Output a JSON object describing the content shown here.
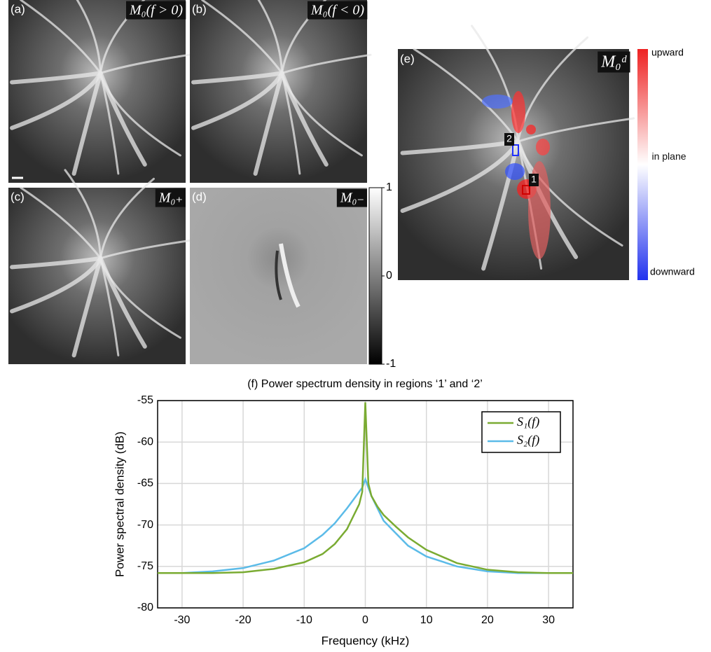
{
  "panels": [
    {
      "tag": "(a)",
      "label": "M₀(f > 0)"
    },
    {
      "tag": "(b)",
      "label": "M₀(f < 0)"
    },
    {
      "tag": "(c)",
      "label": "M₀₊"
    },
    {
      "tag": "(d)",
      "label": "M₀₋"
    },
    {
      "tag": "(e)",
      "label": "M₀ᵈ"
    }
  ],
  "colorbar_d": {
    "ticks": [
      1,
      0,
      -1
    ],
    "lim": [
      -1,
      1
    ]
  },
  "colorbar_e": {
    "top": "upward",
    "middle": "in plane",
    "bottom": "downward"
  },
  "regions": [
    "1",
    "2"
  ],
  "chart_data": {
    "type": "line",
    "title": "(f) Power spectrum density in regions ‘1’ and ‘2’",
    "x_label": "Frequency (kHz)",
    "y_label": "Power spectral density (dB)",
    "x": [
      -34,
      -30,
      -25,
      -20,
      -15,
      -10,
      -7,
      -5,
      -3,
      -2,
      -1,
      -0.5,
      0,
      0.5,
      1,
      2,
      3,
      5,
      7,
      10,
      15,
      20,
      25,
      30,
      34
    ],
    "series": [
      {
        "name": "S₁(f)",
        "color": "#7aab32",
        "values": [
          -75.8,
          -75.8,
          -75.8,
          -75.7,
          -75.3,
          -74.5,
          -73.5,
          -72.3,
          -70.5,
          -69,
          -67.5,
          -66,
          -55.2,
          -65,
          -66.5,
          -67.8,
          -68.8,
          -70.2,
          -71.5,
          -73,
          -74.6,
          -75.4,
          -75.7,
          -75.8,
          -75.8
        ]
      },
      {
        "name": "S₂(f)",
        "color": "#5bbbe8",
        "values": [
          -75.8,
          -75.8,
          -75.6,
          -75.2,
          -74.3,
          -72.8,
          -71.2,
          -69.8,
          -68,
          -67,
          -66,
          -65.5,
          -64.5,
          -65.5,
          -66.5,
          -68,
          -69.5,
          -71,
          -72.5,
          -73.8,
          -75,
          -75.6,
          -75.8,
          -75.8,
          -75.8
        ]
      }
    ],
    "xlim": [
      -34,
      34
    ],
    "ylim": [
      -80,
      -55
    ],
    "xticks": [
      -30,
      -20,
      -10,
      0,
      10,
      20,
      30
    ],
    "yticks": [
      -80,
      -75,
      -70,
      -65,
      -60,
      -55
    ],
    "grid": true,
    "legend": "upper right"
  }
}
